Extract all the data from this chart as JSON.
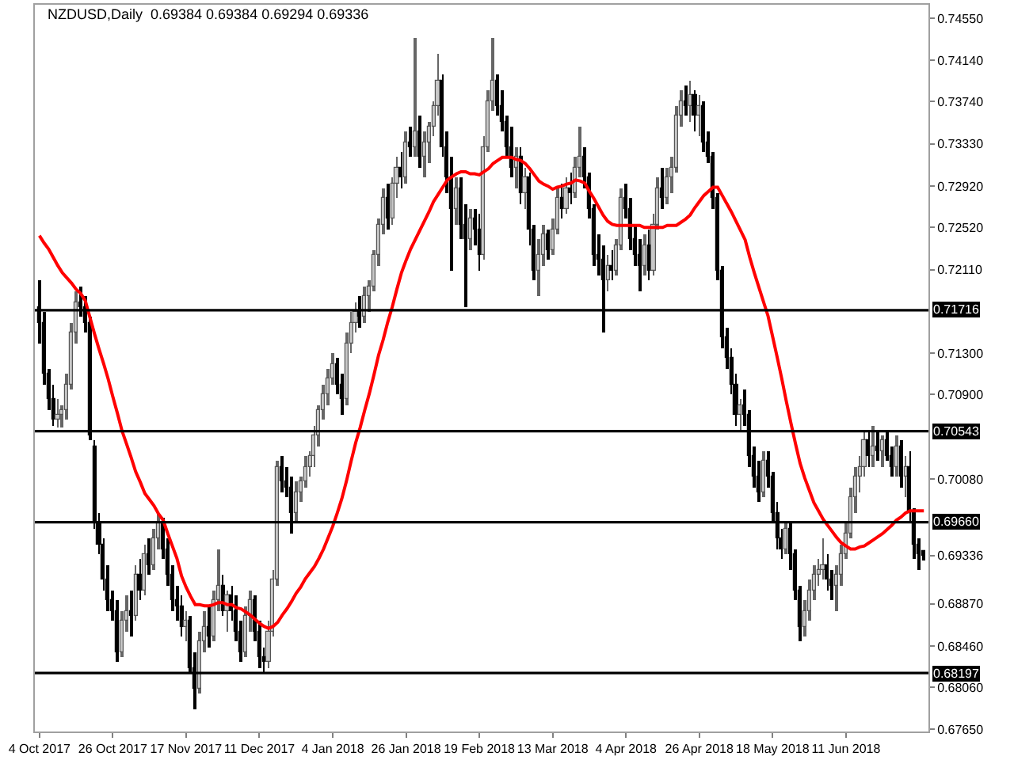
{
  "chart_data": {
    "type": "candlestick",
    "title": "NZDUSD,Daily  0.69384 0.69384 0.69294 0.69336",
    "categories": [
      "4 Oct 2017",
      null,
      null,
      null,
      null,
      null,
      null,
      null,
      null,
      null,
      null,
      null,
      null,
      null,
      null,
      null,
      "26 Oct 2017",
      null,
      null,
      null,
      null,
      null,
      null,
      null,
      null,
      null,
      null,
      null,
      null,
      null,
      null,
      null,
      "17 Nov 2017",
      null,
      null,
      null,
      null,
      null,
      null,
      null,
      null,
      null,
      null,
      null,
      null,
      null,
      null,
      null,
      "11 Dec 2017",
      null,
      null,
      null,
      null,
      null,
      null,
      null,
      null,
      null,
      null,
      null,
      null,
      null,
      null,
      null,
      "4 Jan 2018",
      null,
      null,
      null,
      null,
      null,
      null,
      null,
      null,
      null,
      null,
      null,
      null,
      null,
      null,
      null,
      "26 Jan 2018",
      null,
      null,
      null,
      null,
      null,
      null,
      null,
      null,
      null,
      null,
      null,
      null,
      null,
      null,
      null,
      "19 Feb 2018",
      null,
      null,
      null,
      null,
      null,
      null,
      null,
      null,
      null,
      null,
      null,
      null,
      null,
      null,
      null,
      "13 Mar 2018",
      null,
      null,
      null,
      null,
      null,
      null,
      null,
      null,
      null,
      null,
      null,
      null,
      null,
      null,
      null,
      "4 Apr 2018",
      null,
      null,
      null,
      null,
      null,
      null,
      null,
      null,
      null,
      null,
      null,
      null,
      null,
      null,
      null,
      "26 Apr 2018",
      null,
      null,
      null,
      null,
      null,
      null,
      null,
      null,
      null,
      null,
      null,
      null,
      null,
      null,
      null,
      "18 May 2018",
      null,
      null,
      null,
      null,
      null,
      null,
      null,
      null,
      null,
      null,
      null,
      null,
      null,
      null,
      null,
      "11 Jun 2018",
      null,
      null,
      null,
      null,
      null,
      null,
      null,
      null,
      null,
      null,
      null,
      null,
      null,
      null,
      null,
      null,
      null
    ],
    "ohlc": [
      [
        0.7175,
        0.72,
        0.714,
        0.716
      ],
      [
        0.716,
        0.717,
        0.71,
        0.711
      ],
      [
        0.711,
        0.7115,
        0.7075,
        0.7085
      ],
      [
        0.7085,
        0.71,
        0.706,
        0.7065
      ],
      [
        0.7065,
        0.7085,
        0.7058,
        0.707
      ],
      [
        0.707,
        0.708,
        0.7058,
        0.7075
      ],
      [
        0.7075,
        0.711,
        0.7065,
        0.71
      ],
      [
        0.71,
        0.716,
        0.7095,
        0.715
      ],
      [
        0.715,
        0.719,
        0.714,
        0.718
      ],
      [
        0.718,
        0.7195,
        0.7165,
        0.7175
      ],
      [
        0.7175,
        0.7185,
        0.715,
        0.716
      ],
      [
        0.716,
        0.7165,
        0.7045,
        0.705
      ],
      [
        0.704,
        0.7045,
        0.696,
        0.6965
      ],
      [
        0.6965,
        0.6975,
        0.6935,
        0.6945
      ],
      [
        0.6945,
        0.695,
        0.69,
        0.691
      ],
      [
        0.691,
        0.6925,
        0.688,
        0.689
      ],
      [
        0.689,
        0.69,
        0.687,
        0.688
      ],
      [
        0.688,
        0.689,
        0.683,
        0.684
      ],
      [
        0.684,
        0.688,
        0.6835,
        0.687
      ],
      [
        0.687,
        0.6895,
        0.686,
        0.688
      ],
      [
        0.688,
        0.69,
        0.6855,
        0.6875
      ],
      [
        0.6875,
        0.6925,
        0.687,
        0.6915
      ],
      [
        0.6915,
        0.693,
        0.689,
        0.69
      ],
      [
        0.69,
        0.6945,
        0.6895,
        0.6935
      ],
      [
        0.6935,
        0.695,
        0.6915,
        0.6925
      ],
      [
        0.6925,
        0.696,
        0.692,
        0.695
      ],
      [
        0.695,
        0.6975,
        0.694,
        0.6965
      ],
      [
        0.6965,
        0.697,
        0.693,
        0.694
      ],
      [
        0.694,
        0.695,
        0.6905,
        0.6915
      ],
      [
        0.6915,
        0.6925,
        0.688,
        0.689
      ],
      [
        0.689,
        0.6905,
        0.687,
        0.6885
      ],
      [
        0.6885,
        0.6895,
        0.6855,
        0.6865
      ],
      [
        0.6865,
        0.688,
        0.685,
        0.687
      ],
      [
        0.687,
        0.6875,
        0.682,
        0.6825
      ],
      [
        0.6825,
        0.684,
        0.6785,
        0.6805
      ],
      [
        0.6805,
        0.686,
        0.68,
        0.685
      ],
      [
        0.685,
        0.688,
        0.684,
        0.6865
      ],
      [
        0.6865,
        0.6885,
        0.6845,
        0.6855
      ],
      [
        0.6855,
        0.69,
        0.685,
        0.689
      ],
      [
        0.689,
        0.694,
        0.688,
        0.6905
      ],
      [
        0.6905,
        0.6915,
        0.6875,
        0.688
      ],
      [
        0.688,
        0.69,
        0.686,
        0.6895
      ],
      [
        0.6895,
        0.6905,
        0.687,
        0.688
      ],
      [
        0.688,
        0.6895,
        0.685,
        0.686
      ],
      [
        0.686,
        0.687,
        0.683,
        0.684
      ],
      [
        0.684,
        0.6885,
        0.6835,
        0.6875
      ],
      [
        0.6875,
        0.69,
        0.686,
        0.689
      ],
      [
        0.689,
        0.6895,
        0.685,
        0.686
      ],
      [
        0.686,
        0.687,
        0.6825,
        0.6835
      ],
      [
        0.6835,
        0.6845,
        0.682,
        0.683
      ],
      [
        0.683,
        0.687,
        0.6825,
        0.686
      ],
      [
        0.686,
        0.692,
        0.6855,
        0.691
      ],
      [
        0.691,
        0.7025,
        0.6905,
        0.702
      ],
      [
        0.702,
        0.703,
        0.6995,
        0.7005
      ],
      [
        0.7005,
        0.702,
        0.699,
        0.7
      ],
      [
        0.7,
        0.701,
        0.6955,
        0.6975
      ],
      [
        0.6975,
        0.7005,
        0.6965,
        0.6995
      ],
      [
        0.6995,
        0.701,
        0.6985,
        0.7005
      ],
      [
        0.7005,
        0.703,
        0.7,
        0.702
      ],
      [
        0.702,
        0.7035,
        0.701,
        0.703
      ],
      [
        0.703,
        0.706,
        0.702,
        0.705
      ],
      [
        0.705,
        0.708,
        0.704,
        0.7075
      ],
      [
        0.7075,
        0.71,
        0.7065,
        0.709
      ],
      [
        0.709,
        0.7115,
        0.708,
        0.7105
      ],
      [
        0.7105,
        0.713,
        0.71,
        0.712
      ],
      [
        0.712,
        0.7125,
        0.709,
        0.71
      ],
      [
        0.71,
        0.711,
        0.707,
        0.7085
      ],
      [
        0.7085,
        0.715,
        0.708,
        0.714
      ],
      [
        0.714,
        0.717,
        0.713,
        0.716
      ],
      [
        0.716,
        0.718,
        0.715,
        0.717
      ],
      [
        0.717,
        0.7185,
        0.7155,
        0.7165
      ],
      [
        0.7165,
        0.7195,
        0.716,
        0.7185
      ],
      [
        0.7185,
        0.72,
        0.717,
        0.7195
      ],
      [
        0.7195,
        0.723,
        0.719,
        0.7225
      ],
      [
        0.7225,
        0.726,
        0.7215,
        0.7255
      ],
      [
        0.7255,
        0.729,
        0.7245,
        0.728
      ],
      [
        0.728,
        0.7295,
        0.725,
        0.726
      ],
      [
        0.726,
        0.73,
        0.7255,
        0.7295
      ],
      [
        0.7295,
        0.732,
        0.728,
        0.731
      ],
      [
        0.731,
        0.7325,
        0.729,
        0.73
      ],
      [
        0.73,
        0.7345,
        0.7295,
        0.7335
      ],
      [
        0.7335,
        0.735,
        0.732,
        0.733
      ],
      [
        0.733,
        0.7435,
        0.732,
        0.7345
      ],
      [
        0.7345,
        0.736,
        0.731,
        0.732
      ],
      [
        0.732,
        0.7345,
        0.73,
        0.7335
      ],
      [
        0.7335,
        0.7355,
        0.7315,
        0.735
      ],
      [
        0.735,
        0.7375,
        0.734,
        0.737
      ],
      [
        0.737,
        0.742,
        0.736,
        0.7395
      ],
      [
        0.7395,
        0.74,
        0.732,
        0.733
      ],
      [
        0.733,
        0.7345,
        0.7285,
        0.73
      ],
      [
        0.73,
        0.732,
        0.721,
        0.727
      ],
      [
        0.727,
        0.73,
        0.7255,
        0.729
      ],
      [
        0.729,
        0.73,
        0.724,
        0.7255
      ],
      [
        0.7255,
        0.7275,
        0.7175,
        0.724
      ],
      [
        0.724,
        0.727,
        0.723,
        0.726
      ],
      [
        0.726,
        0.727,
        0.7235,
        0.725
      ],
      [
        0.725,
        0.7265,
        0.721,
        0.7225
      ],
      [
        0.7225,
        0.734,
        0.722,
        0.733
      ],
      [
        0.733,
        0.7385,
        0.7325,
        0.7375
      ],
      [
        0.7375,
        0.7435,
        0.7365,
        0.7395
      ],
      [
        0.7395,
        0.74,
        0.736,
        0.737
      ],
      [
        0.737,
        0.7385,
        0.7345,
        0.7355
      ],
      [
        0.7355,
        0.736,
        0.732,
        0.733
      ],
      [
        0.733,
        0.735,
        0.73,
        0.731
      ],
      [
        0.731,
        0.733,
        0.729,
        0.732
      ],
      [
        0.732,
        0.733,
        0.7275,
        0.7285
      ],
      [
        0.7285,
        0.731,
        0.727,
        0.73
      ],
      [
        0.73,
        0.7305,
        0.7235,
        0.725
      ],
      [
        0.725,
        0.7255,
        0.72,
        0.721
      ],
      [
        0.721,
        0.724,
        0.7185,
        0.7225
      ],
      [
        0.7225,
        0.7255,
        0.7215,
        0.7245
      ],
      [
        0.7245,
        0.725,
        0.722,
        0.723
      ],
      [
        0.723,
        0.726,
        0.7225,
        0.725
      ],
      [
        0.725,
        0.729,
        0.7245,
        0.728
      ],
      [
        0.728,
        0.7295,
        0.726,
        0.727
      ],
      [
        0.727,
        0.73,
        0.7265,
        0.729
      ],
      [
        0.729,
        0.7305,
        0.7275,
        0.7285
      ],
      [
        0.7285,
        0.732,
        0.728,
        0.731
      ],
      [
        0.731,
        0.735,
        0.73,
        0.732
      ],
      [
        0.732,
        0.733,
        0.729,
        0.73
      ],
      [
        0.73,
        0.7305,
        0.726,
        0.727
      ],
      [
        0.727,
        0.7275,
        0.7215,
        0.7225
      ],
      [
        0.7225,
        0.7245,
        0.7205,
        0.722
      ],
      [
        0.722,
        0.7235,
        0.715,
        0.72
      ],
      [
        0.72,
        0.7225,
        0.719,
        0.7215
      ],
      [
        0.7215,
        0.723,
        0.72,
        0.721
      ],
      [
        0.721,
        0.724,
        0.7205,
        0.7235
      ],
      [
        0.7235,
        0.729,
        0.723,
        0.728
      ],
      [
        0.728,
        0.7295,
        0.726,
        0.727
      ],
      [
        0.727,
        0.728,
        0.723,
        0.724
      ],
      [
        0.724,
        0.7255,
        0.7215,
        0.7225
      ],
      [
        0.7225,
        0.724,
        0.719,
        0.7215
      ],
      [
        0.7215,
        0.7245,
        0.7205,
        0.7235
      ],
      [
        0.7235,
        0.725,
        0.72,
        0.721
      ],
      [
        0.721,
        0.7265,
        0.7205,
        0.7255
      ],
      [
        0.7255,
        0.73,
        0.725,
        0.729
      ],
      [
        0.729,
        0.731,
        0.727,
        0.728
      ],
      [
        0.728,
        0.731,
        0.7275,
        0.73
      ],
      [
        0.73,
        0.732,
        0.7285,
        0.731
      ],
      [
        0.731,
        0.737,
        0.7305,
        0.736
      ],
      [
        0.736,
        0.7385,
        0.735,
        0.7375
      ],
      [
        0.7375,
        0.739,
        0.736,
        0.737
      ],
      [
        0.737,
        0.7395,
        0.7355,
        0.738
      ],
      [
        0.738,
        0.7385,
        0.7345,
        0.736
      ],
      [
        0.736,
        0.738,
        0.734,
        0.737
      ],
      [
        0.737,
        0.7375,
        0.7325,
        0.7335
      ],
      [
        0.7335,
        0.7345,
        0.7315,
        0.732
      ],
      [
        0.732,
        0.7325,
        0.727,
        0.728
      ],
      [
        0.728,
        0.7285,
        0.72,
        0.721
      ],
      [
        0.721,
        0.7215,
        0.7135,
        0.7145
      ],
      [
        0.7145,
        0.7155,
        0.7115,
        0.7125
      ],
      [
        0.7125,
        0.7135,
        0.709,
        0.71
      ],
      [
        0.71,
        0.711,
        0.706,
        0.707
      ],
      [
        0.707,
        0.7085,
        0.7055,
        0.708
      ],
      [
        0.708,
        0.7095,
        0.706,
        0.707
      ],
      [
        0.707,
        0.7075,
        0.702,
        0.703
      ],
      [
        0.703,
        0.704,
        0.7,
        0.701
      ],
      [
        0.701,
        0.7025,
        0.6985,
        0.6995
      ],
      [
        0.6995,
        0.7035,
        0.699,
        0.7025
      ],
      [
        0.7025,
        0.7035,
        0.7,
        0.701
      ],
      [
        0.701,
        0.7015,
        0.6965,
        0.6975
      ],
      [
        0.6975,
        0.6985,
        0.694,
        0.695
      ],
      [
        0.695,
        0.696,
        0.693,
        0.694
      ],
      [
        0.694,
        0.6965,
        0.6935,
        0.696
      ],
      [
        0.696,
        0.6965,
        0.692,
        0.6935
      ],
      [
        0.6935,
        0.694,
        0.689,
        0.69
      ],
      [
        0.69,
        0.6905,
        0.685,
        0.6865
      ],
      [
        0.6865,
        0.689,
        0.6855,
        0.688
      ],
      [
        0.688,
        0.691,
        0.687,
        0.69
      ],
      [
        0.69,
        0.6925,
        0.689,
        0.6915
      ],
      [
        0.6915,
        0.693,
        0.6905,
        0.692
      ],
      [
        0.692,
        0.695,
        0.691,
        0.6925
      ],
      [
        0.6925,
        0.6935,
        0.69,
        0.691
      ],
      [
        0.691,
        0.692,
        0.689,
        0.6905
      ],
      [
        0.6905,
        0.6925,
        0.688,
        0.6915
      ],
      [
        0.6915,
        0.6945,
        0.6905,
        0.6935
      ],
      [
        0.6935,
        0.6965,
        0.693,
        0.6955
      ],
      [
        0.6955,
        0.7,
        0.695,
        0.699
      ],
      [
        0.699,
        0.702,
        0.6975,
        0.701
      ],
      [
        0.701,
        0.703,
        0.6995,
        0.702
      ],
      [
        0.702,
        0.7055,
        0.701,
        0.7045
      ],
      [
        0.7045,
        0.7055,
        0.702,
        0.703
      ],
      [
        0.703,
        0.706,
        0.702,
        0.704
      ],
      [
        0.704,
        0.7055,
        0.7025,
        0.7035
      ],
      [
        0.7035,
        0.705,
        0.702,
        0.7045
      ],
      [
        0.7045,
        0.7055,
        0.7025,
        0.703
      ],
      [
        0.703,
        0.704,
        0.701,
        0.702
      ],
      [
        0.702,
        0.705,
        0.701,
        0.704
      ],
      [
        0.704,
        0.7045,
        0.7,
        0.701
      ],
      [
        0.701,
        0.703,
        0.699,
        0.702
      ],
      [
        0.702,
        0.7035,
        0.6965,
        0.6975
      ],
      [
        0.6975,
        0.698,
        0.693,
        0.6945
      ],
      [
        0.6945,
        0.695,
        0.692,
        0.6935
      ],
      [
        0.69384,
        0.69384,
        0.69294,
        0.69336
      ]
    ],
    "series": [
      {
        "type": "line",
        "color": "#ff0000",
        "values": [
          0.7244,
          0.7237,
          0.7231,
          0.7223,
          0.7215,
          0.7208,
          0.7203,
          0.7198,
          0.7192,
          0.7188,
          0.7181,
          0.7165,
          0.7149,
          0.7134,
          0.712,
          0.7105,
          0.7088,
          0.7072,
          0.7055,
          0.7042,
          0.7029,
          0.7015,
          0.7005,
          0.6994,
          0.6988,
          0.6982,
          0.6974,
          0.6968,
          0.6955,
          0.6943,
          0.6931,
          0.6914,
          0.6903,
          0.6894,
          0.6886,
          0.6886,
          0.6885,
          0.6885,
          0.6886,
          0.6888,
          0.6888,
          0.6886,
          0.6886,
          0.6883,
          0.6882,
          0.6879,
          0.6876,
          0.6872,
          0.6868,
          0.6865,
          0.6863,
          0.6865,
          0.6869,
          0.6876,
          0.6882,
          0.6889,
          0.6897,
          0.6903,
          0.6911,
          0.6917,
          0.6923,
          0.6931,
          0.694,
          0.6951,
          0.6962,
          0.6975,
          0.6989,
          0.7006,
          0.7025,
          0.7043,
          0.7058,
          0.7075,
          0.7091,
          0.7109,
          0.7128,
          0.7143,
          0.716,
          0.7175,
          0.7192,
          0.7208,
          0.722,
          0.7231,
          0.724,
          0.7249,
          0.7258,
          0.7267,
          0.7277,
          0.7284,
          0.7291,
          0.7298,
          0.7301,
          0.7304,
          0.7306,
          0.7306,
          0.7304,
          0.7304,
          0.7303,
          0.7306,
          0.7309,
          0.7314,
          0.7317,
          0.732,
          0.732,
          0.732,
          0.7318,
          0.7317,
          0.7314,
          0.7309,
          0.7303,
          0.7297,
          0.7294,
          0.7292,
          0.7289,
          0.7291,
          0.7292,
          0.7294,
          0.7295,
          0.7298,
          0.7297,
          0.7295,
          0.7287,
          0.728,
          0.7272,
          0.7264,
          0.7258,
          0.7255,
          0.7254,
          0.7254,
          0.7254,
          0.7254,
          0.7254,
          0.7254,
          0.7252,
          0.7252,
          0.7252,
          0.7252,
          0.7252,
          0.7254,
          0.7254,
          0.7254,
          0.7257,
          0.726,
          0.7264,
          0.7271,
          0.7277,
          0.7283,
          0.7287,
          0.7291,
          0.7291,
          0.7283,
          0.7275,
          0.7267,
          0.7258,
          0.7249,
          0.724,
          0.7223,
          0.7208,
          0.7194,
          0.718,
          0.7166,
          0.7146,
          0.7126,
          0.7105,
          0.7083,
          0.7062,
          0.7042,
          0.7023,
          0.7009,
          0.6997,
          0.6985,
          0.6977,
          0.6969,
          0.6963,
          0.6957,
          0.6951,
          0.6946,
          0.6943,
          0.694,
          0.694,
          0.6942,
          0.6943,
          0.6946,
          0.6949,
          0.6952,
          0.6955,
          0.6959,
          0.6963,
          0.6968,
          0.6971,
          0.6975,
          0.6977,
          0.6977,
          0.6977,
          0.6977
        ]
      }
    ],
    "ylim": [
      0.6763,
      0.7468
    ],
    "yticks": [
      {
        "value": 0.7455,
        "label": "0.74550"
      },
      {
        "value": 0.7414,
        "label": "0.74140"
      },
      {
        "value": 0.7374,
        "label": "0.73740"
      },
      {
        "value": 0.7333,
        "label": "0.73330"
      },
      {
        "value": 0.7292,
        "label": "0.72920"
      },
      {
        "value": 0.7252,
        "label": "0.72520"
      },
      {
        "value": 0.7211,
        "label": "0.72110"
      },
      {
        "value": 0.713,
        "label": "0.71300"
      },
      {
        "value": 0.709,
        "label": "0.70900"
      },
      {
        "value": 0.7008,
        "label": "0.70080"
      },
      {
        "value": 0.69336,
        "label": "0.69336"
      },
      {
        "value": 0.6887,
        "label": "0.68870"
      },
      {
        "value": 0.6846,
        "label": "0.68460"
      },
      {
        "value": 0.6806,
        "label": "0.68060"
      },
      {
        "value": 0.6765,
        "label": "0.67650"
      }
    ],
    "ref_lines": [
      {
        "axis": "y",
        "value": 0.71716,
        "label": "0.71716",
        "color": "#000000"
      },
      {
        "axis": "y",
        "value": 0.70543,
        "label": "0.70543",
        "color": "#000000"
      },
      {
        "axis": "y",
        "value": 0.6966,
        "label": "0.69660",
        "color": "#000000"
      },
      {
        "axis": "y",
        "value": 0.68197,
        "label": "0.68197",
        "color": "#000000"
      }
    ]
  }
}
